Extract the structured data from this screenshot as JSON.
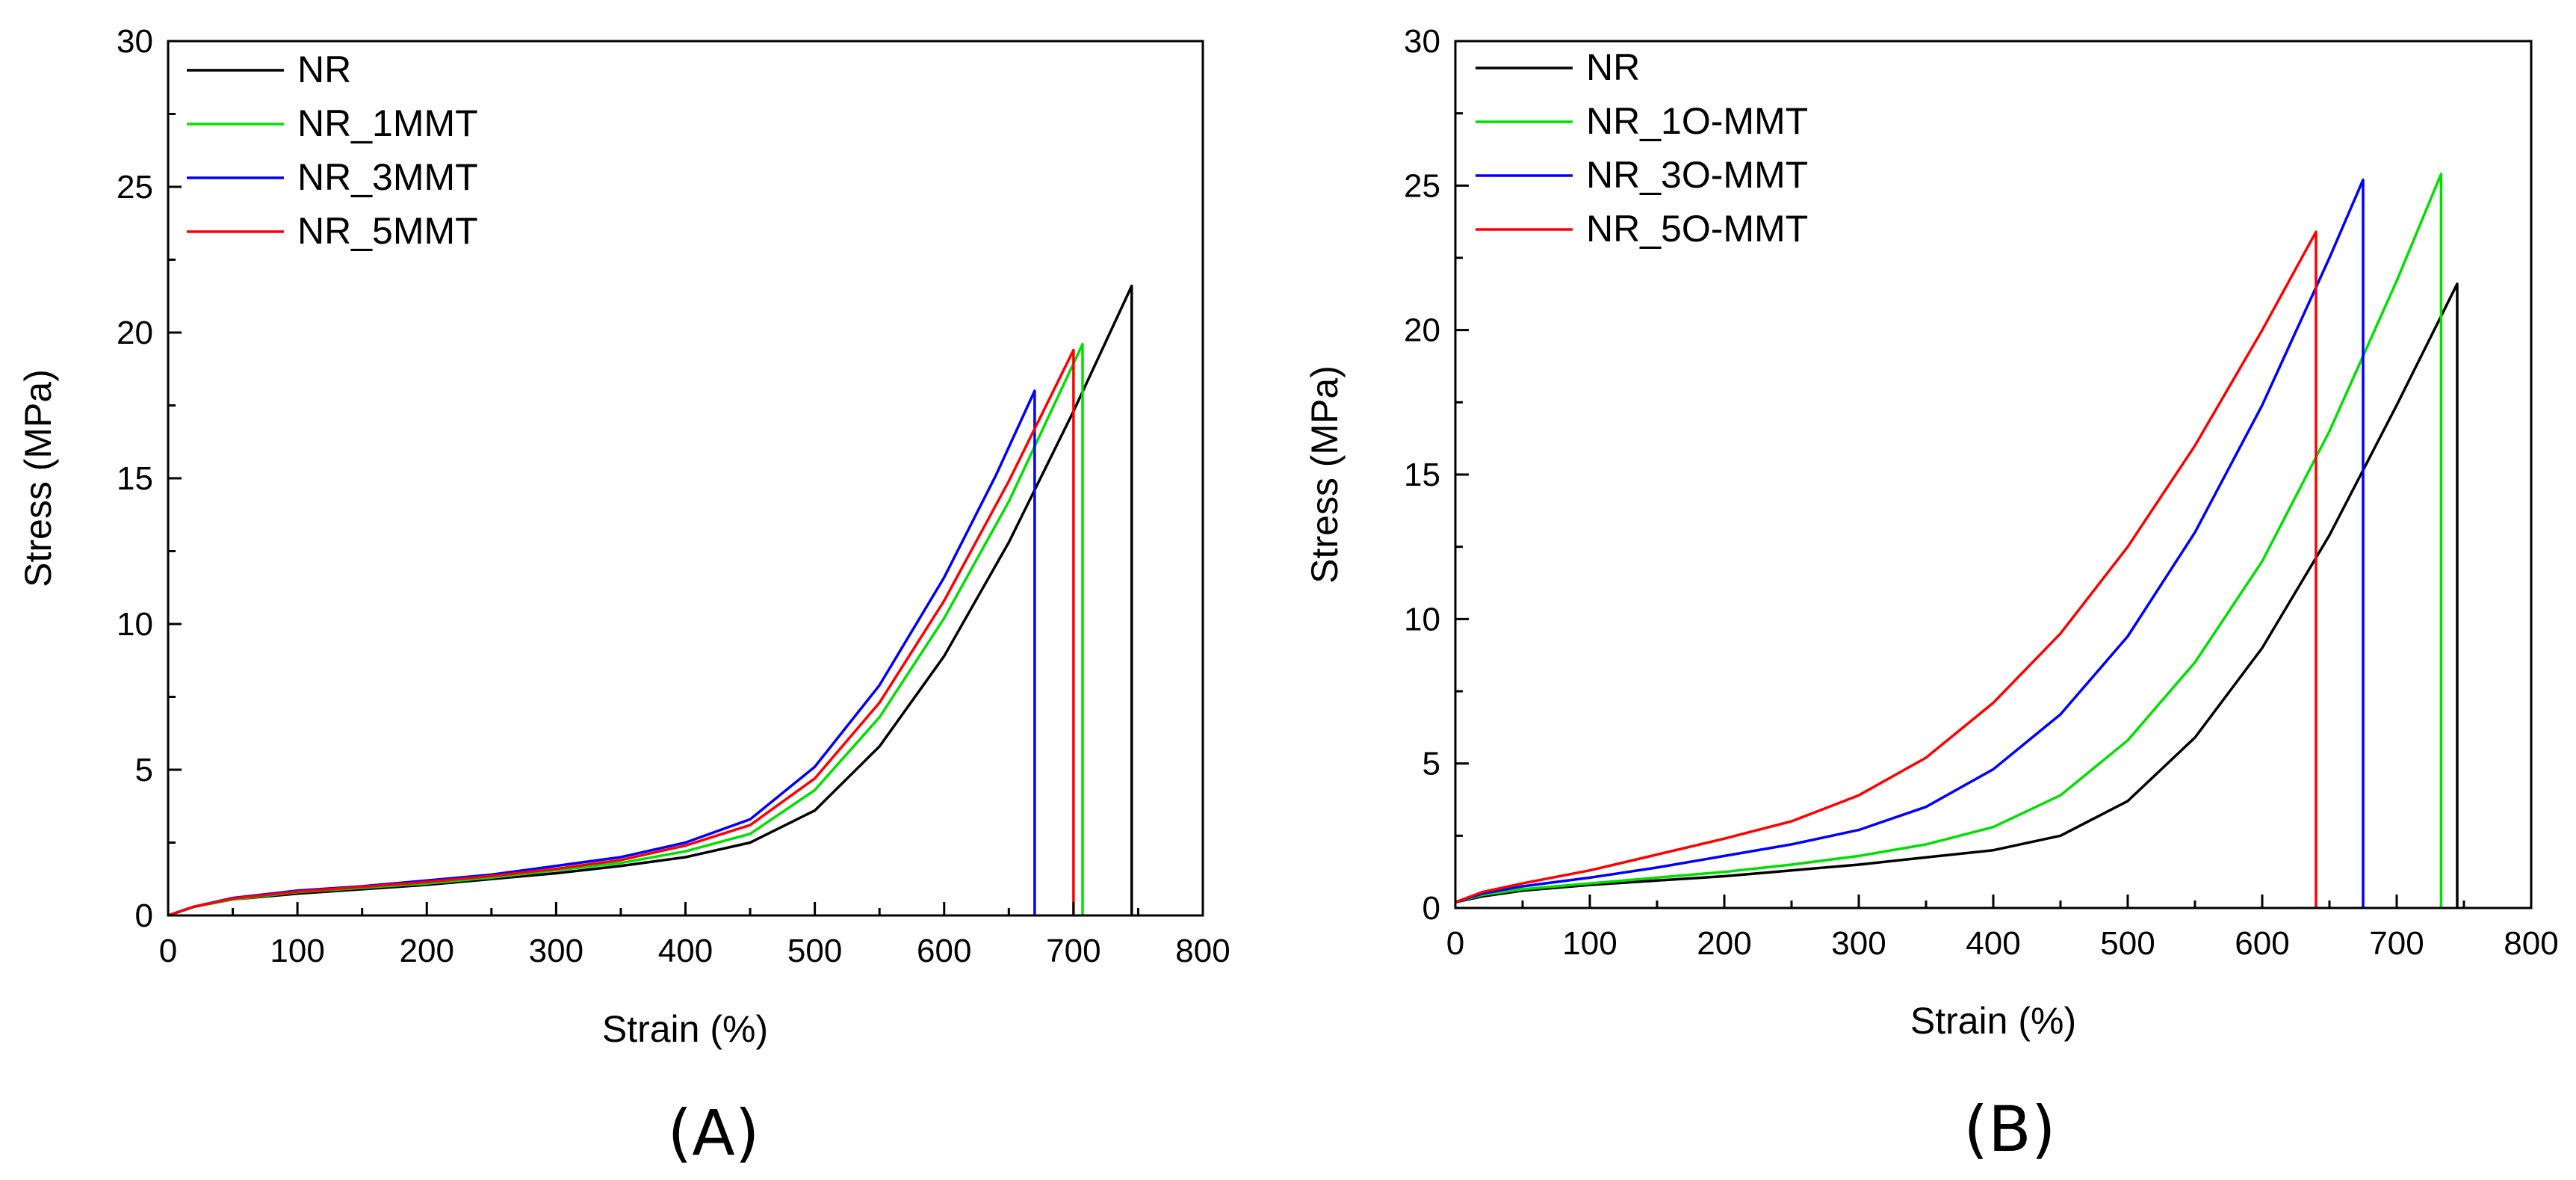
{
  "chart_data": [
    {
      "type": "line",
      "panel_label": "(A)",
      "xlabel": "Strain (%)",
      "ylabel": "Stress (MPa)",
      "xlim": [
        0,
        800
      ],
      "ylim": [
        0,
        30
      ],
      "xticks": [
        "0",
        "100",
        "200",
        "300",
        "400",
        "500",
        "600",
        "700",
        "800"
      ],
      "yticks": [
        "0",
        "5",
        "10",
        "15",
        "20",
        "25",
        "30"
      ],
      "legend_position": "top-left",
      "series": [
        {
          "name": "NR",
          "color": "#000000",
          "x": [
            0,
            20,
            50,
            100,
            150,
            200,
            250,
            300,
            350,
            400,
            450,
            500,
            550,
            600,
            650,
            700,
            745,
            745
          ],
          "y": [
            0,
            0.3,
            0.55,
            0.75,
            0.9,
            1.05,
            1.25,
            1.45,
            1.7,
            2.0,
            2.5,
            3.6,
            5.8,
            8.9,
            12.8,
            17.3,
            21.6,
            0
          ]
        },
        {
          "name": "NR_1MMT",
          "color": "#00e000",
          "x": [
            0,
            20,
            50,
            100,
            150,
            200,
            250,
            300,
            350,
            400,
            450,
            500,
            550,
            600,
            650,
            707,
            707
          ],
          "y": [
            0,
            0.3,
            0.55,
            0.8,
            0.95,
            1.1,
            1.3,
            1.55,
            1.8,
            2.2,
            2.8,
            4.3,
            6.8,
            10.2,
            14.2,
            19.6,
            0
          ]
        },
        {
          "name": "NR_3MMT",
          "color": "#0000ff",
          "x": [
            0,
            20,
            50,
            100,
            150,
            200,
            250,
            300,
            350,
            400,
            450,
            500,
            550,
            600,
            640,
            670,
            670
          ],
          "y": [
            0,
            0.3,
            0.6,
            0.85,
            1.0,
            1.2,
            1.4,
            1.7,
            2.0,
            2.5,
            3.3,
            5.1,
            7.9,
            11.6,
            15.1,
            18.0,
            0
          ]
        },
        {
          "name": "NR_5MMT",
          "color": "#ff0000",
          "x": [
            0,
            20,
            50,
            100,
            150,
            200,
            250,
            300,
            350,
            400,
            450,
            500,
            550,
            600,
            650,
            700,
            700
          ],
          "y": [
            0,
            0.3,
            0.58,
            0.82,
            0.98,
            1.15,
            1.35,
            1.6,
            1.9,
            2.4,
            3.1,
            4.7,
            7.3,
            10.8,
            14.9,
            19.4,
            0
          ]
        }
      ]
    },
    {
      "type": "line",
      "panel_label": "(B)",
      "xlabel": "Strain (%)",
      "ylabel": "Stress (MPa)",
      "xlim": [
        0,
        800
      ],
      "ylim": [
        0,
        30
      ],
      "xticks": [
        "0",
        "100",
        "200",
        "300",
        "400",
        "500",
        "600",
        "700",
        "800"
      ],
      "yticks": [
        "0",
        "5",
        "10",
        "15",
        "20",
        "25",
        "30"
      ],
      "legend_position": "top-left",
      "series": [
        {
          "name": "NR",
          "color": "#000000",
          "x": [
            0,
            20,
            50,
            100,
            150,
            200,
            250,
            300,
            350,
            400,
            450,
            500,
            550,
            600,
            650,
            700,
            745,
            745
          ],
          "y": [
            0.2,
            0.4,
            0.6,
            0.8,
            0.95,
            1.1,
            1.3,
            1.5,
            1.75,
            2.0,
            2.5,
            3.7,
            5.9,
            9.0,
            12.9,
            17.4,
            21.6,
            0
          ]
        },
        {
          "name": "NR_1O-MMT",
          "color": "#00e000",
          "x": [
            0,
            20,
            50,
            100,
            150,
            200,
            250,
            300,
            350,
            400,
            450,
            500,
            550,
            600,
            650,
            700,
            733,
            733
          ],
          "y": [
            0.2,
            0.45,
            0.65,
            0.85,
            1.05,
            1.25,
            1.5,
            1.8,
            2.2,
            2.8,
            3.9,
            5.8,
            8.5,
            12.0,
            16.5,
            21.7,
            25.4,
            0
          ]
        },
        {
          "name": "NR_3O-MMT",
          "color": "#0000ff",
          "x": [
            0,
            20,
            50,
            100,
            150,
            200,
            250,
            300,
            350,
            400,
            450,
            500,
            550,
            600,
            650,
            675,
            675
          ],
          "y": [
            0.2,
            0.5,
            0.75,
            1.05,
            1.4,
            1.8,
            2.2,
            2.7,
            3.5,
            4.8,
            6.7,
            9.4,
            13.0,
            17.4,
            22.5,
            25.2,
            0
          ]
        },
        {
          "name": "NR_5O-MMT",
          "color": "#ff0000",
          "x": [
            0,
            20,
            50,
            100,
            150,
            200,
            250,
            300,
            350,
            400,
            450,
            500,
            550,
            600,
            640,
            640
          ],
          "y": [
            0.2,
            0.55,
            0.85,
            1.3,
            1.85,
            2.4,
            3.0,
            3.9,
            5.2,
            7.1,
            9.5,
            12.5,
            16.0,
            20.0,
            23.4,
            0
          ]
        }
      ]
    }
  ]
}
